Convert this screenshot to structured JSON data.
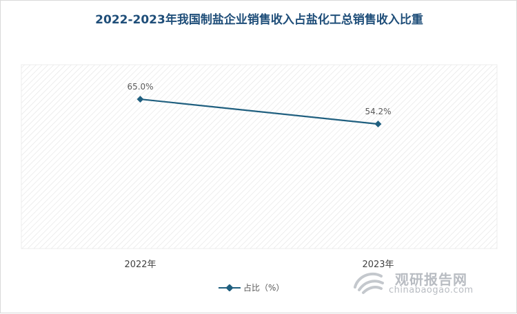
{
  "chart_data": {
    "type": "line",
    "title": "2022-2023年我国制盐企业销售收入占盐化工总销售收入比重",
    "categories": [
      "2022年",
      "2023年"
    ],
    "series": [
      {
        "name": "占比（%）",
        "values": [
          65.0,
          54.2
        ],
        "labels": [
          "65.0%",
          "54.2%"
        ]
      }
    ],
    "ylim": [
      0,
      80
    ],
    "grid": false,
    "legend": "bottom",
    "colors": {
      "line": "#1f5f7f",
      "title": "#1f4e79",
      "hatch": "#e6e6e6"
    }
  },
  "watermark": {
    "brand": "观研报告网",
    "url": "chinabaogao.com",
    "icon": "swirl-logo-icon"
  }
}
